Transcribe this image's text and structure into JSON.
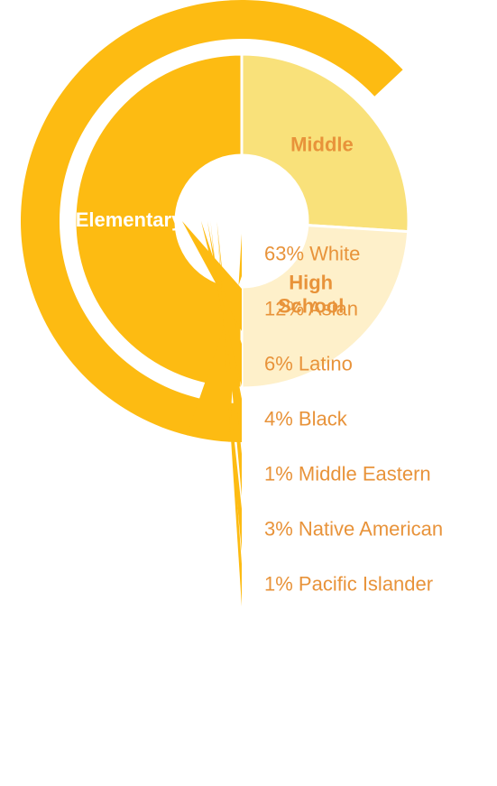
{
  "colors": {
    "ring": "#FDBB12",
    "elementary": "#FDBB12",
    "middle": "#F9E17A",
    "high_school": "#FEF0CA",
    "label_orange": "#E8933A",
    "label_white": "#FFFFFF"
  },
  "chart_data": {
    "type": "radial-bar",
    "inner_donut": {
      "type": "pie",
      "segments": [
        {
          "label_lines": [
            "Elementary"
          ],
          "value": 50
        },
        {
          "label_lines": [
            "Middle"
          ],
          "value": 26
        },
        {
          "label_lines": [
            "High",
            "School"
          ],
          "value": 24
        }
      ]
    },
    "ethnicity": {
      "type": "bar",
      "unit": "%",
      "categories": [
        "White",
        "Asian",
        "Latino",
        "Black",
        "Middle Eastern",
        "Native American",
        "Pacific Islander"
      ],
      "values": [
        63,
        12,
        6,
        4,
        1,
        3,
        1
      ],
      "labels": [
        "63% White",
        "12% Asian",
        "6% Latino",
        "4% Black",
        "1% Middle Eastern",
        "3% Native American",
        "1% Pacific Islander"
      ]
    }
  }
}
